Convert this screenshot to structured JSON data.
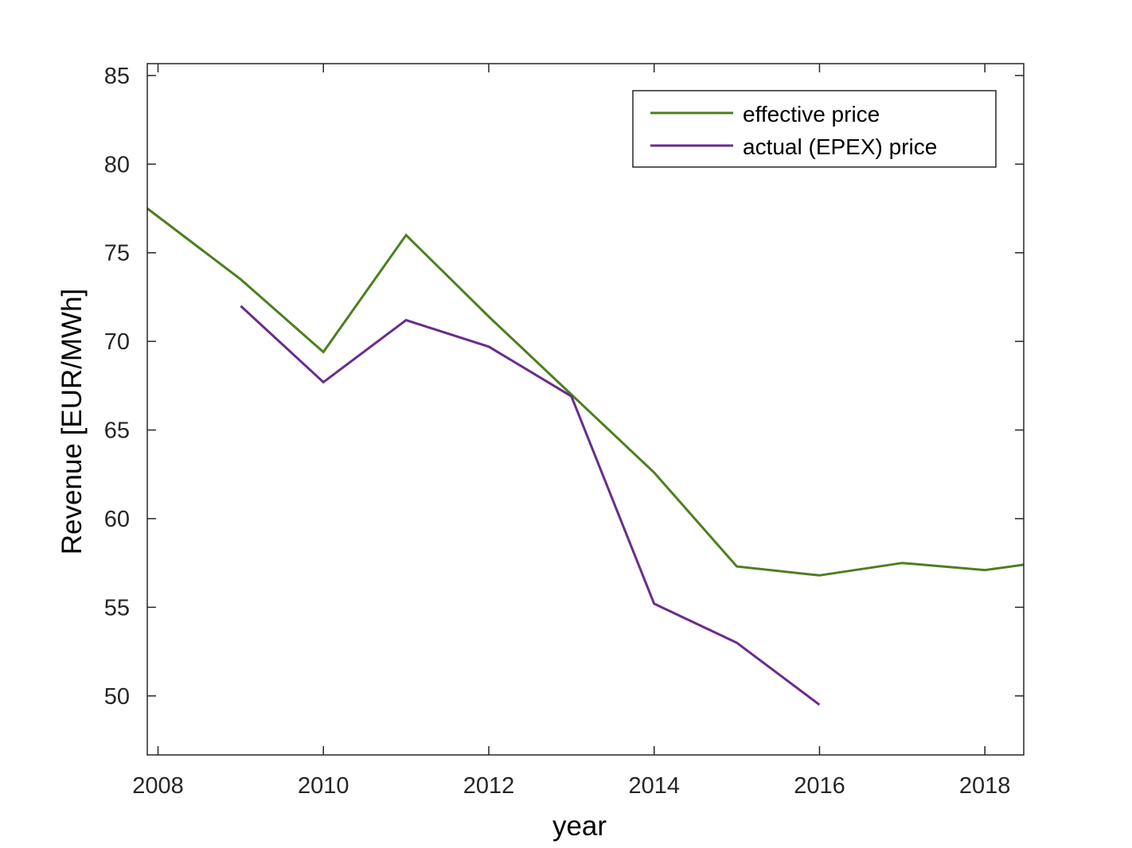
{
  "chart_data": {
    "type": "line",
    "title": "",
    "xlabel": "year",
    "ylabel": "Revenue [EUR/MWh]",
    "xlim": [
      2007.87,
      2018.47
    ],
    "ylim": [
      46.67,
      85.67
    ],
    "xticks": [
      2008,
      2010,
      2012,
      2014,
      2016,
      2018
    ],
    "yticks": [
      50,
      55,
      60,
      65,
      70,
      75,
      80,
      85
    ],
    "grid": false,
    "legend_position": "top-right",
    "series": [
      {
        "name": "effective price",
        "color": "#4c7f1f",
        "x": [
          2007.87,
          2009,
          2010,
          2011,
          2012,
          2013,
          2014,
          2015,
          2016,
          2017,
          2018,
          2018.47
        ],
        "y": [
          77.5,
          73.5,
          69.4,
          76.0,
          71.4,
          67.0,
          62.6,
          57.3,
          56.8,
          57.5,
          57.1,
          57.4
        ]
      },
      {
        "name": "actual (EPEX) price",
        "color": "#6a2c8c",
        "x": [
          2009,
          2010,
          2011,
          2012,
          2013,
          2014,
          2015,
          2016
        ],
        "y": [
          72.0,
          67.7,
          71.2,
          69.7,
          66.9,
          55.2,
          53.0,
          49.5
        ]
      }
    ]
  }
}
